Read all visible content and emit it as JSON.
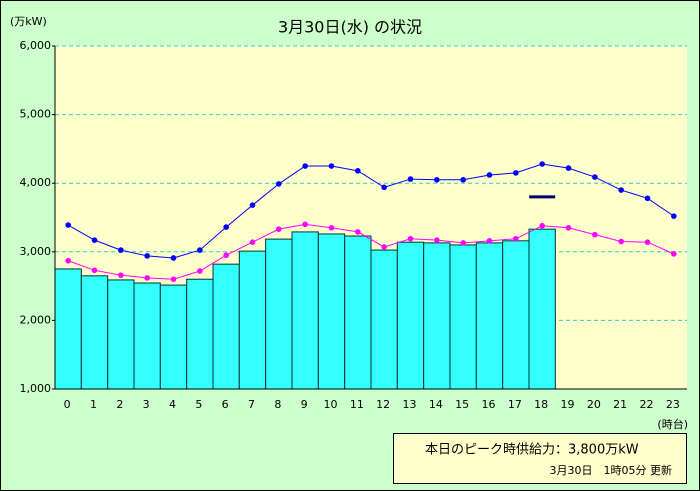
{
  "chart_data": {
    "type": "bar",
    "title": "3月30日(水) の状況",
    "y_label": "(万kW)",
    "x_label": "(時台)",
    "categories": [
      "0",
      "1",
      "2",
      "3",
      "4",
      "5",
      "6",
      "7",
      "8",
      "9",
      "10",
      "11",
      "12",
      "13",
      "14",
      "15",
      "16",
      "17",
      "18",
      "19",
      "20",
      "21",
      "22",
      "23"
    ],
    "series": [
      {
        "type": "bar",
        "color": "#33ffff",
        "values": [
          2750,
          2650,
          2590,
          2545,
          2515,
          2600,
          2820,
          3010,
          3185,
          3290,
          3260,
          3230,
          3025,
          3140,
          3130,
          3100,
          3130,
          3160,
          3330,
          null,
          null,
          null,
          null,
          null
        ]
      },
      {
        "type": "line",
        "color": "#0000ff",
        "values": [
          3390,
          3170,
          3025,
          2940,
          2910,
          3025,
          3360,
          3680,
          3990,
          4250,
          4250,
          4180,
          3940,
          4060,
          4050,
          4050,
          4120,
          4150,
          4280,
          4220,
          4090,
          3900,
          3780,
          3520
        ]
      },
      {
        "type": "line",
        "color": "#ff00ff",
        "values": [
          2870,
          2730,
          2660,
          2620,
          2600,
          2720,
          2950,
          3140,
          3330,
          3400,
          3350,
          3290,
          3070,
          3190,
          3170,
          3130,
          3160,
          3190,
          3380,
          3350,
          3250,
          3150,
          3140,
          2970
        ]
      }
    ],
    "ylim": [
      1000,
      6000
    ],
    "yticks": [
      {
        "value": 1000,
        "label": "1,000"
      },
      {
        "value": 2000,
        "label": "2,000"
      },
      {
        "value": 3000,
        "label": "3,000"
      },
      {
        "value": 4000,
        "label": "4,000"
      },
      {
        "value": 5000,
        "label": "5,000"
      },
      {
        "value": 6000,
        "label": "6,000"
      }
    ],
    "grid": true,
    "peak_supply": {
      "hour": 18,
      "value": 3800,
      "label": "3,800万kW",
      "color": "#000066"
    },
    "peak_text": "本日のピーク時供給力：",
    "update_text": "3月30日　1時05分 更新"
  }
}
